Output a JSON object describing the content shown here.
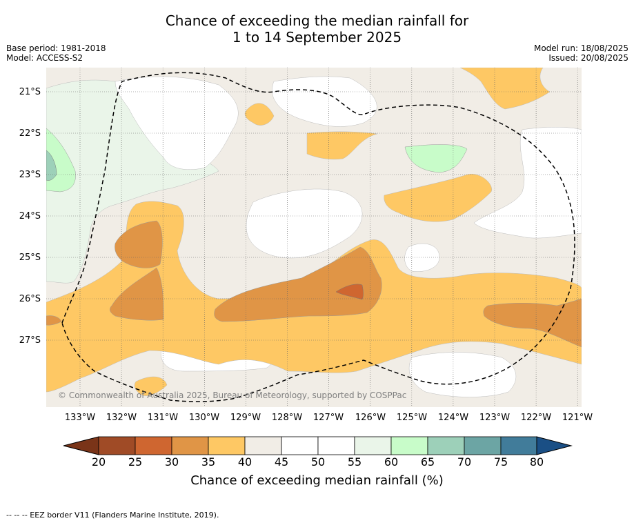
{
  "title": {
    "line1": "Chance of exceeding the median rainfall for",
    "line2": "1 to 14 September 2025"
  },
  "meta": {
    "base_period": "Base period: 1981-2018",
    "model": "Model: ACCESS-S2",
    "model_run": "Model run: 18/08/2025",
    "issued": "Issued: 20/08/2025"
  },
  "map": {
    "lat_labels": [
      "21°S",
      "22°S",
      "23°S",
      "24°S",
      "25°S",
      "26°S",
      "27°S"
    ],
    "lon_labels": [
      "133°W",
      "132°W",
      "131°W",
      "130°W",
      "129°W",
      "128°W",
      "127°W",
      "126°W",
      "125°W",
      "124°W",
      "123°W",
      "122°W",
      "121°W"
    ],
    "copyright": "© Commonwealth of Australia 2025, Bureau of Meteorology, supported by COSPPac",
    "region_colors": {
      "c20": "#a04b26",
      "c25": "#cf6630",
      "c30": "#e09546",
      "c35": "#fec864",
      "c40": "#f1ede6",
      "c45": "#ffffff",
      "c55": "#eaf5e9",
      "c60": "#c8fcc9",
      "c65": "#9dd0b9",
      "c70": "#6ca5a4",
      "c75": "#417c9a",
      "c80": "#1a4f85"
    }
  },
  "colorbar": {
    "ticks": [
      "20",
      "25",
      "30",
      "35",
      "40",
      "45",
      "50",
      "55",
      "60",
      "65",
      "70",
      "75",
      "80"
    ],
    "label": "Chance of exceeding median rainfall (%)"
  },
  "footnote": "--  --  -- EEZ border V11 (Flanders Marine Institute, 2019)."
}
